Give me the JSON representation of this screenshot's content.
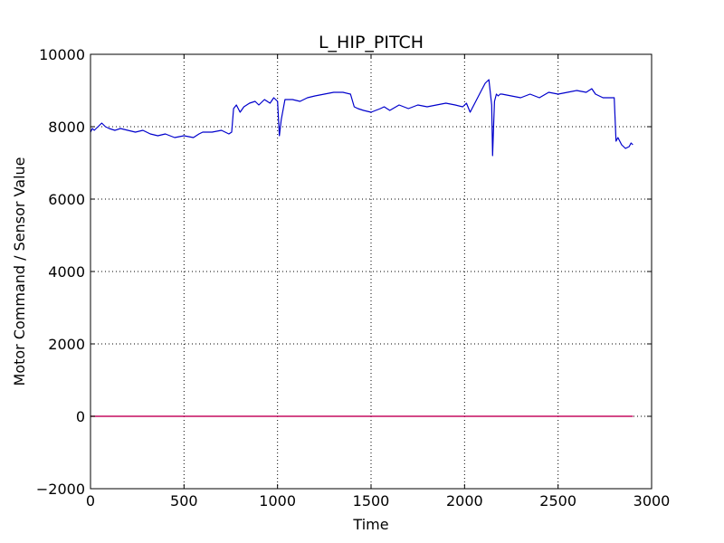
{
  "chart_data": {
    "type": "line",
    "title": "L_HIP_PITCH",
    "xlabel": "Time",
    "ylabel": "Motor Command / Sensor Value",
    "xlim": [
      0,
      3000
    ],
    "ylim": [
      -2000,
      10000
    ],
    "xticks": [
      0,
      500,
      1000,
      1500,
      2000,
      2500,
      3000
    ],
    "yticks": [
      -2000,
      0,
      2000,
      4000,
      6000,
      8000,
      10000
    ],
    "xtick_labels": [
      "0",
      "500",
      "1000",
      "1500",
      "2000",
      "2500",
      "3000"
    ],
    "ytick_labels": [
      "−2000",
      "0",
      "2000",
      "4000",
      "6000",
      "8000",
      "10000"
    ],
    "grid": true,
    "series": [
      {
        "color": "#0000cc",
        "x": [
          0,
          10,
          20,
          40,
          60,
          80,
          100,
          130,
          160,
          200,
          240,
          280,
          320,
          360,
          400,
          450,
          500,
          550,
          580,
          600,
          650,
          700,
          740,
          755,
          765,
          780,
          800,
          820,
          850,
          880,
          900,
          930,
          960,
          980,
          1000,
          1010,
          1020,
          1040,
          1080,
          1120,
          1160,
          1200,
          1250,
          1300,
          1350,
          1390,
          1410,
          1430,
          1460,
          1500,
          1550,
          1570,
          1600,
          1650,
          1700,
          1750,
          1800,
          1850,
          1900,
          1950,
          1990,
          2010,
          2030,
          2060,
          2090,
          2110,
          2130,
          2145,
          2150,
          2155,
          2160,
          2170,
          2180,
          2190,
          2200,
          2250,
          2300,
          2350,
          2400,
          2450,
          2500,
          2550,
          2600,
          2650,
          2680,
          2700,
          2740,
          2780,
          2800,
          2810,
          2820,
          2840,
          2860,
          2880,
          2890,
          2900
        ],
        "values": [
          7850,
          7950,
          7900,
          8000,
          8100,
          8000,
          7950,
          7900,
          7950,
          7900,
          7850,
          7900,
          7800,
          7750,
          7800,
          7700,
          7750,
          7700,
          7800,
          7850,
          7850,
          7900,
          7800,
          7850,
          8500,
          8600,
          8400,
          8550,
          8650,
          8700,
          8600,
          8750,
          8650,
          8800,
          8700,
          7750,
          8200,
          8750,
          8750,
          8700,
          8800,
          8850,
          8900,
          8950,
          8950,
          8900,
          8550,
          8500,
          8450,
          8400,
          8500,
          8550,
          8450,
          8600,
          8500,
          8600,
          8550,
          8600,
          8650,
          8600,
          8550,
          8650,
          8400,
          8700,
          9000,
          9200,
          9300,
          8600,
          7200,
          8000,
          8700,
          8900,
          8850,
          8900,
          8900,
          8850,
          8800,
          8900,
          8800,
          8950,
          8900,
          8950,
          9000,
          8950,
          9050,
          8900,
          8800,
          8800,
          8800,
          7600,
          7700,
          7500,
          7400,
          7450,
          7550,
          7500
        ]
      },
      {
        "color": "#800000",
        "x": [
          0,
          2900
        ],
        "values": [
          0,
          0
        ]
      },
      {
        "color": "#cc0066",
        "x": [
          0,
          2900
        ],
        "values": [
          0,
          0
        ]
      }
    ]
  }
}
